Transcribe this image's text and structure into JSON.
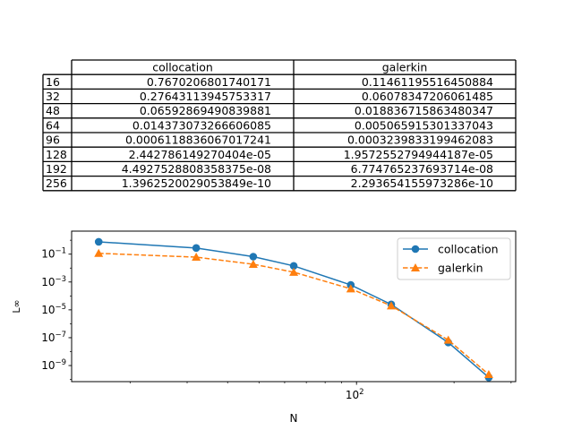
{
  "chart_data": [
    {
      "type": "table",
      "columns": [
        "collocation",
        "galerkin"
      ],
      "rows": [
        {
          "label": "16",
          "values": [
            "0.7670206801740171",
            "0.11461195516450884"
          ]
        },
        {
          "label": "32",
          "values": [
            "0.27643113945753317",
            "0.06078347206061485"
          ]
        },
        {
          "label": "48",
          "values": [
            "0.06592869490839881",
            "0.018836715863480347"
          ]
        },
        {
          "label": "64",
          "values": [
            "0.014373073266606085",
            "0.005065915301337043"
          ]
        },
        {
          "label": "96",
          "values": [
            "0.0006118836067017241",
            "0.0003239833199462083"
          ]
        },
        {
          "label": "128",
          "values": [
            "2.442786149270404e-05",
            "1.9572552794944187e-05"
          ]
        },
        {
          "label": "192",
          "values": [
            "4.4927528808358375e-08",
            "6.774765237693714e-08"
          ]
        },
        {
          "label": "256",
          "values": [
            "1.3962520029053849e-10",
            "2.293654155973286e-10"
          ]
        }
      ]
    },
    {
      "type": "line",
      "x": [
        16,
        32,
        48,
        64,
        96,
        128,
        192,
        256
      ],
      "series": [
        {
          "name": "collocation",
          "color": "#1f77b4",
          "marker": "circle",
          "linestyle": "solid",
          "values": [
            0.7670206801740171,
            0.27643113945753317,
            0.06592869490839881,
            0.014373073266606085,
            0.0006118836067017241,
            2.442786149270404e-05,
            4.4927528808358375e-08,
            1.3962520029053849e-10
          ]
        },
        {
          "name": "galerkin",
          "color": "#ff7f0e",
          "marker": "triangle",
          "linestyle": "dashed",
          "values": [
            0.11461195516450884,
            0.06078347206061485,
            0.018836715863480347,
            0.005065915301337043,
            0.0003239833199462083,
            1.9572552794944187e-05,
            6.774765237693714e-08,
            2.293654155973286e-10
          ]
        }
      ],
      "xlabel": "N",
      "ylabel": "L∞",
      "xscale": "log",
      "yscale": "log",
      "xlim": [
        13.2,
        310
      ],
      "ylim": [
        7e-11,
        4.5
      ],
      "xticks": [
        {
          "value": 100,
          "base": "10",
          "exp": "2"
        }
      ],
      "yticks": [
        {
          "value": 0.1,
          "base": "10",
          "exp": "−1"
        },
        {
          "value": 0.001,
          "base": "10",
          "exp": "−3"
        },
        {
          "value": 1e-05,
          "base": "10",
          "exp": "−5"
        },
        {
          "value": 1e-07,
          "base": "10",
          "exp": "−7"
        },
        {
          "value": 1e-09,
          "base": "10",
          "exp": "−9"
        }
      ],
      "grid": false,
      "legend_position": "top-right"
    }
  ]
}
